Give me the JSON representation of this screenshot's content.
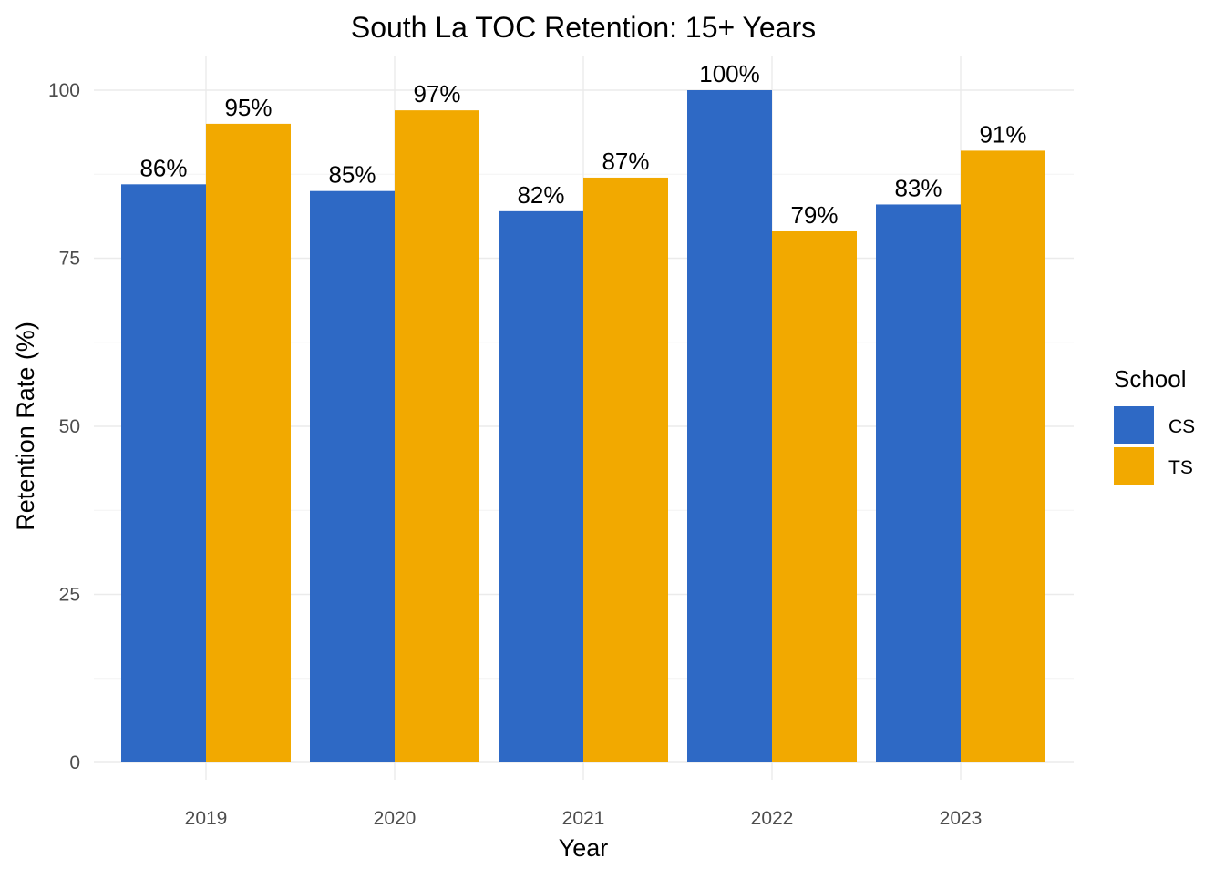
{
  "chart_data": {
    "type": "bar",
    "title": "South La TOC Retention: 15+ Years",
    "xlabel": "Year",
    "ylabel": "Retention Rate (%)",
    "categories": [
      "2019",
      "2020",
      "2021",
      "2022",
      "2023"
    ],
    "series": [
      {
        "name": "CS",
        "color": "#2E69C5",
        "values": [
          86,
          85,
          82,
          100,
          83
        ],
        "labels": [
          "86%",
          "85%",
          "82%",
          "100%",
          "83%"
        ]
      },
      {
        "name": "TS",
        "color": "#F2A900",
        "values": [
          95,
          97,
          87,
          79,
          91
        ],
        "labels": [
          "95%",
          "97%",
          "87%",
          "79%",
          "91%"
        ]
      }
    ],
    "ylim": [
      0,
      105
    ],
    "y_ticks": [
      0,
      25,
      50,
      75,
      100
    ],
    "y_tick_labels": [
      "0",
      "25",
      "50",
      "75",
      "100"
    ],
    "grid": true,
    "legend": {
      "title": "School",
      "position": "right"
    }
  }
}
